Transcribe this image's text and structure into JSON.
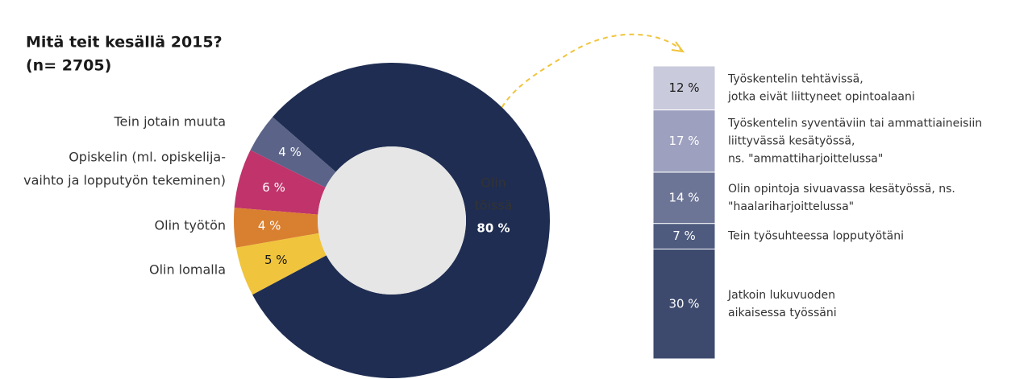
{
  "chart_data": [
    {
      "type": "pie",
      "donut": true,
      "title": "Mitä teit kesällä 2015?",
      "subtitle": "(n= 2705)",
      "categories": [
        [
          "Tein jotain muuta"
        ],
        [
          "Opiskelin (ml. opiskelija-",
          "vaihto ja lopputyön tekeminen)"
        ],
        [
          "Olin työtön"
        ],
        [
          "Olin lomalla"
        ],
        [
          "Olin",
          "töissä"
        ]
      ],
      "values": [
        4,
        6,
        4,
        5,
        80
      ],
      "value_labels": [
        "4 %",
        "6 %",
        "4 %",
        "5 %",
        "80 %"
      ],
      "colors": [
        "#5b6488",
        "#c0336b",
        "#d97f30",
        "#f0c43c",
        "#1f2d52"
      ]
    },
    {
      "type": "bar",
      "stacked": true,
      "ylim": [
        0,
        80
      ],
      "series": [
        {
          "name": [
            "Jatkoin lukuvuoden",
            "aikaisessa työssäni"
          ],
          "color": "#3d4a6e",
          "values": [
            30
          ],
          "value_labels": [
            "30 %"
          ]
        },
        {
          "name": [
            "Tein työsuhteessa lopputyötäni"
          ],
          "color": "#4e5a7e",
          "values": [
            7
          ],
          "value_labels": [
            "7 %"
          ]
        },
        {
          "name": [
            "Olin opintoja sivuavassa kesätyössä, ns.",
            "\"haalariharjoittelussa\""
          ],
          "color": "#6d7596",
          "values": [
            14
          ],
          "value_labels": [
            "14 %"
          ]
        },
        {
          "name": [
            "Työskentelin syventäviin tai ammattiaineisiin",
            "liittyvässä kesätyössä,",
            "ns. \"ammattiharjoittelussa\""
          ],
          "color": "#9da0be",
          "values": [
            17
          ],
          "value_labels": [
            "17 %"
          ]
        },
        {
          "name": [
            "Työskentelin tehtävissä,",
            "jotka eivät liittyneet opintoalaani"
          ],
          "color": "#c9cadb",
          "values": [
            12
          ],
          "value_labels": [
            "12 %"
          ]
        }
      ]
    }
  ]
}
